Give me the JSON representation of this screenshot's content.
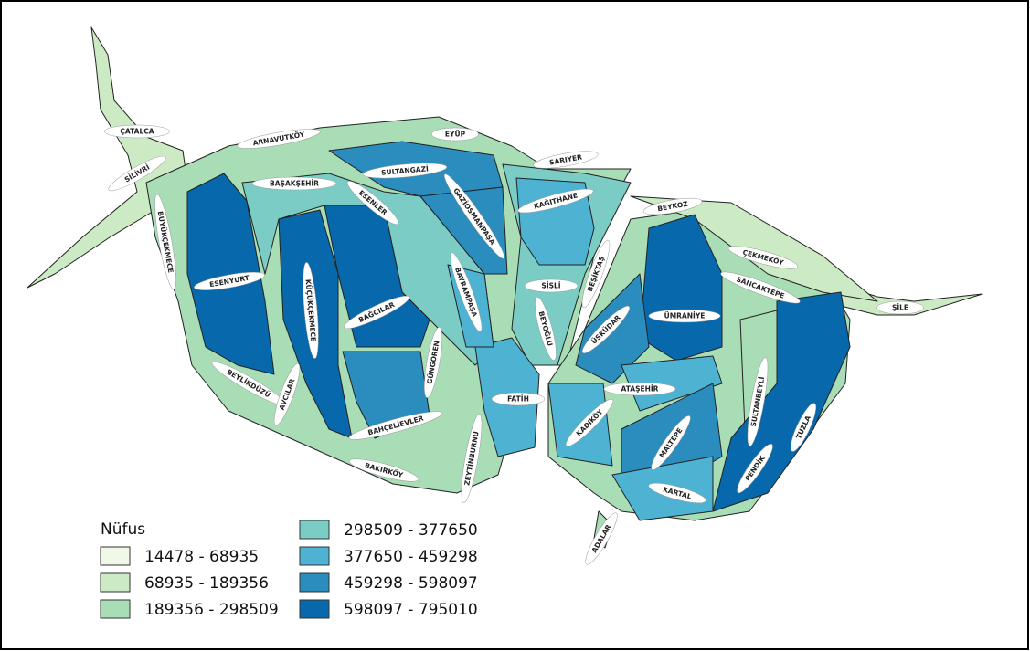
{
  "legend": {
    "title": "Nüfus",
    "classes": [
      {
        "label": "14478 - 68935",
        "color": "#f0f9e8"
      },
      {
        "label": "68935 - 189356",
        "color": "#ccebc5"
      },
      {
        "label": "189356 - 298509",
        "color": "#a8ddb5"
      },
      {
        "label": "298509 - 377650",
        "color": "#7bccc4"
      },
      {
        "label": "377650 - 459298",
        "color": "#4eb3d3"
      },
      {
        "label": "459298 - 598097",
        "color": "#2b8cbe"
      },
      {
        "label": "598097 - 795010",
        "color": "#0868ac"
      }
    ]
  },
  "districts": [
    "ÇATALCA",
    "ARNAVUTKÖY",
    "EYÜP",
    "SİLİVRİ",
    "BAŞAKŞEHİR",
    "SULTANGAZİ",
    "SARIYER",
    "KAĞITHANE",
    "BEYKOZ",
    "ESENLER",
    "GAZİOSMANPAŞA",
    "BÜYÜKÇEKMECE",
    "ESENYURT",
    "KÜÇÜKÇEKMECE",
    "BAĞCILAR",
    "BAYRAMPAŞA",
    "ŞİŞLİ",
    "BEŞİKTAŞ",
    "ÇEKMEKÖY",
    "SANCAKTEPE",
    "ŞİLE",
    "BEYOĞLU",
    "ÜSKÜDAR",
    "ÜMRANİYE",
    "GÜNGÖREN",
    "BEYLİKDÜZÜ",
    "AVCILAR",
    "ATAŞEHİR",
    "SULTANBEYLİ",
    "FATİH",
    "KADIKÖY",
    "BAHÇELİEVLER",
    "MALTEPE",
    "TUZLA",
    "BAKIRKÖY",
    "ZEYTİNBURNU",
    "PENDİK",
    "KARTAL",
    "ADALAR"
  ]
}
